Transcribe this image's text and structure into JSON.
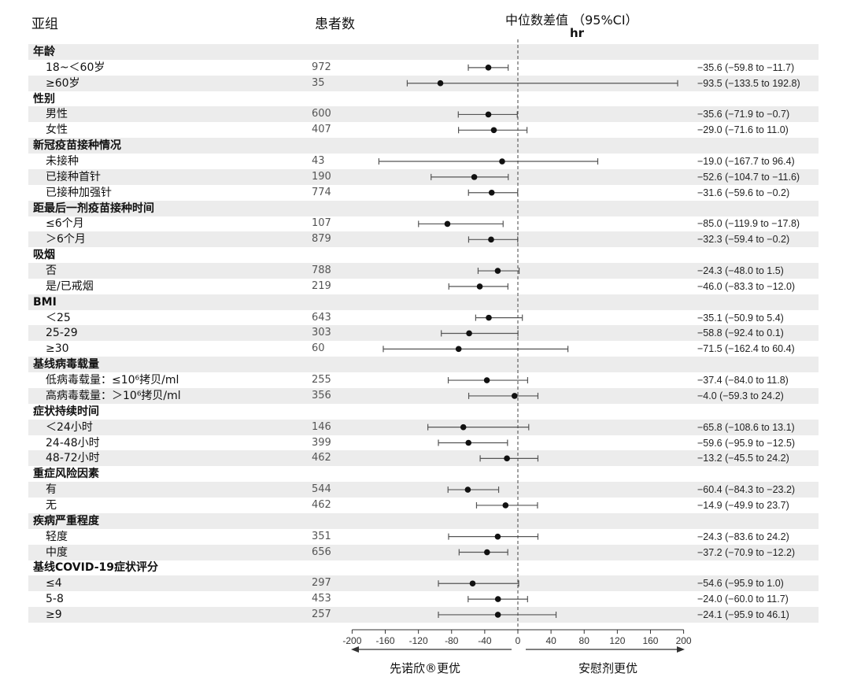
{
  "header": {
    "subgroup": "亚组",
    "n": "患者数",
    "effect": "中位数差值 （95%CI）",
    "unit": "hr"
  },
  "footer": {
    "left": "先诺欣®更优",
    "right": "安慰剂更优"
  },
  "chart_data": {
    "type": "forest",
    "xlim": [
      -200,
      200
    ],
    "xticks": [
      "-200",
      "-160",
      "-120",
      "-80",
      "-40",
      "0",
      "40",
      "80",
      "120",
      "160",
      "200"
    ],
    "reference_line": 0,
    "rows": [
      {
        "label": "年龄",
        "header": true
      },
      {
        "label": "18~＜60岁",
        "n": "972",
        "est": -35.6,
        "lo": -59.8,
        "hi": -11.7,
        "ci": "−35.6 (−59.8 to −11.7)"
      },
      {
        "label": "≥60岁",
        "n": "35",
        "est": -93.5,
        "lo": -133.5,
        "hi": 192.8,
        "ci": "−93.5 (−133.5 to 192.8)"
      },
      {
        "label": "性别",
        "header": true
      },
      {
        "label": "男性",
        "n": "600",
        "est": -35.6,
        "lo": -71.9,
        "hi": -0.7,
        "ci": "−35.6 (−71.9 to −0.7)"
      },
      {
        "label": "女性",
        "n": "407",
        "est": -29.0,
        "lo": -71.6,
        "hi": 11.0,
        "ci": "−29.0 (−71.6 to 11.0)"
      },
      {
        "label": "新冠疫苗接种情况",
        "header": true
      },
      {
        "label": "未接种",
        "n": "43",
        "est": -19.0,
        "lo": -167.7,
        "hi": 96.4,
        "ci": "−19.0 (−167.7 to 96.4)"
      },
      {
        "label": "已接种首针",
        "n": "190",
        "est": -52.6,
        "lo": -104.7,
        "hi": -11.6,
        "ci": "−52.6 (−104.7 to −11.6)"
      },
      {
        "label": "已接种加强针",
        "n": "774",
        "est": -31.6,
        "lo": -59.6,
        "hi": -0.2,
        "ci": "−31.6 (−59.6 to −0.2)"
      },
      {
        "label": "距最后一剂疫苗接种时间",
        "header": true
      },
      {
        "label": "≤6个月",
        "n": "107",
        "est": -85.0,
        "lo": -119.9,
        "hi": -17.8,
        "ci": "−85.0 (−119.9 to −17.8)"
      },
      {
        "label": "＞6个月",
        "n": "879",
        "est": -32.3,
        "lo": -59.4,
        "hi": -0.2,
        "ci": "−32.3 (−59.4 to −0.2)"
      },
      {
        "label": "吸烟",
        "header": true
      },
      {
        "label": "否",
        "n": "788",
        "est": -24.3,
        "lo": -48.0,
        "hi": 1.5,
        "ci": "−24.3 (−48.0 to 1.5)"
      },
      {
        "label": "是/已戒烟",
        "n": "219",
        "est": -46.0,
        "lo": -83.3,
        "hi": -12.0,
        "ci": "−46.0 (−83.3 to −12.0)"
      },
      {
        "label": "BMI",
        "header": true
      },
      {
        "label": "＜25",
        "n": "643",
        "est": -35.1,
        "lo": -50.9,
        "hi": 5.4,
        "ci": "−35.1 (−50.9 to 5.4)"
      },
      {
        "label": "25-29",
        "n": "303",
        "est": -58.8,
        "lo": -92.4,
        "hi": 0.1,
        "ci": "−58.8 (−92.4 to 0.1)"
      },
      {
        "label": "≥30",
        "n": "60",
        "est": -71.5,
        "lo": -162.4,
        "hi": 60.4,
        "ci": "−71.5 (−162.4 to 60.4)"
      },
      {
        "label": "基线病毒载量",
        "header": true
      },
      {
        "label": "低病毒载量：≤10⁶拷贝/ml",
        "n": "255",
        "est": -37.4,
        "lo": -84.0,
        "hi": 11.8,
        "ci": "−37.4 (−84.0 to 11.8)"
      },
      {
        "label": "高病毒载量：＞10⁶拷贝/ml",
        "n": "356",
        "est": -4.0,
        "lo": -59.3,
        "hi": 24.2,
        "ci": "−4.0 (−59.3 to 24.2)"
      },
      {
        "label": "症状持续时间",
        "header": true
      },
      {
        "label": "＜24小时",
        "n": "146",
        "est": -65.8,
        "lo": -108.6,
        "hi": 13.1,
        "ci": "−65.8 (−108.6 to 13.1)"
      },
      {
        "label": "24-48小时",
        "n": "399",
        "est": -59.6,
        "lo": -95.9,
        "hi": -12.5,
        "ci": "−59.6 (−95.9 to −12.5)"
      },
      {
        "label": "48-72小时",
        "n": "462",
        "est": -13.2,
        "lo": -45.5,
        "hi": 24.2,
        "ci": "−13.2 (−45.5 to 24.2)"
      },
      {
        "label": "重症风险因素",
        "header": true
      },
      {
        "label": "有",
        "n": "544",
        "est": -60.4,
        "lo": -84.3,
        "hi": -23.2,
        "ci": "−60.4 (−84.3 to −23.2)"
      },
      {
        "label": "无",
        "n": "462",
        "est": -14.9,
        "lo": -49.9,
        "hi": 23.7,
        "ci": "−14.9 (−49.9 to 23.7)"
      },
      {
        "label": "疾病严重程度",
        "header": true
      },
      {
        "label": "轻度",
        "n": "351",
        "est": -24.3,
        "lo": -83.6,
        "hi": 24.2,
        "ci": "−24.3 (−83.6 to 24.2)"
      },
      {
        "label": "中度",
        "n": "656",
        "est": -37.2,
        "lo": -70.9,
        "hi": -12.2,
        "ci": "−37.2 (−70.9 to −12.2)"
      },
      {
        "label": "基线COVID-19症状评分",
        "header": true
      },
      {
        "label": "≤4",
        "n": "297",
        "est": -54.6,
        "lo": -95.9,
        "hi": 1.0,
        "ci": "−54.6 (−95.9 to 1.0)"
      },
      {
        "label": "5-8",
        "n": "453",
        "est": -24.0,
        "lo": -60.0,
        "hi": 11.7,
        "ci": "−24.0 (−60.0 to 11.7)"
      },
      {
        "label": "≥9",
        "n": "257",
        "est": -24.1,
        "lo": -95.9,
        "hi": 46.1,
        "ci": "−24.1 (−95.9 to 46.1)"
      }
    ]
  }
}
